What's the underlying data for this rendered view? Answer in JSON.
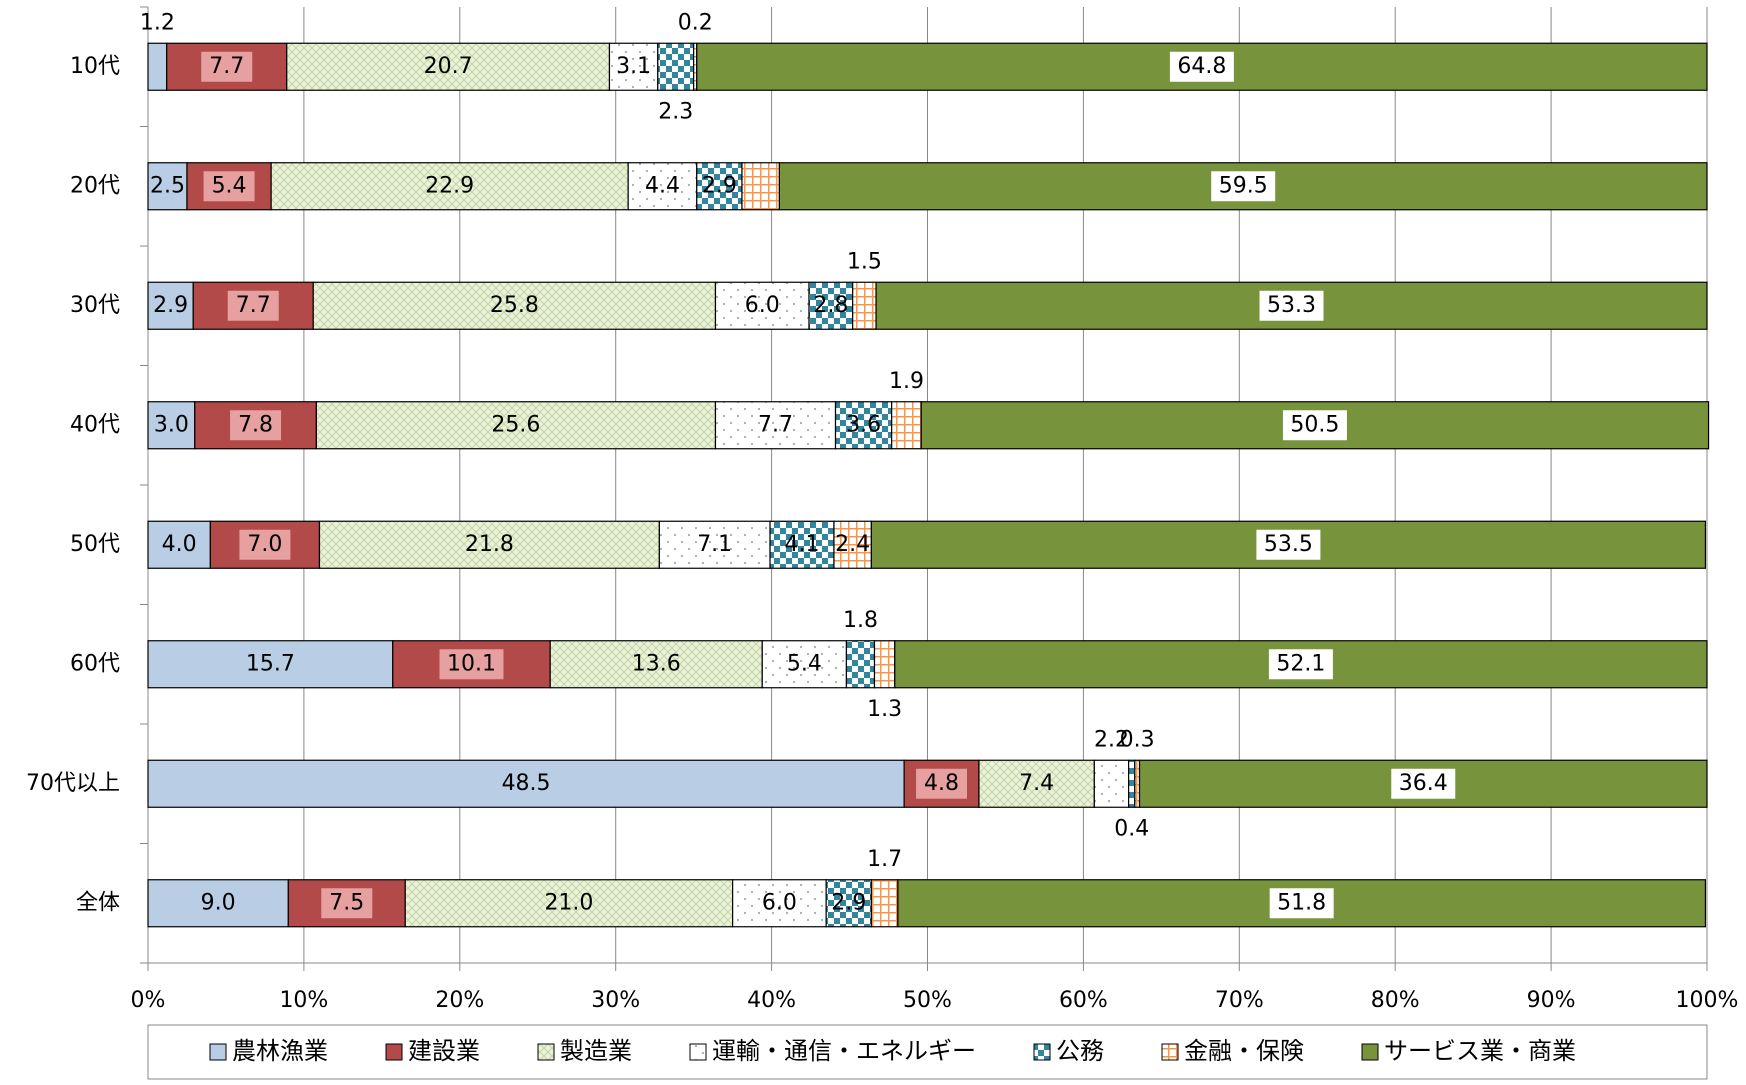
{
  "chart_data": {
    "type": "stacked-bar-horizontal",
    "categories": [
      "10代",
      "20代",
      "30代",
      "40代",
      "50代",
      "60代",
      "70代以上",
      "全体"
    ],
    "series": [
      {
        "name": "農林漁業",
        "color": "#b9cde5",
        "values": [
          1.2,
          2.5,
          2.9,
          3.0,
          4.0,
          15.7,
          48.5,
          9.0
        ],
        "value_labels": [
          "1.2",
          "2.5",
          "2.9",
          "3.0",
          "4.0",
          "15.7",
          "48.5",
          "9.0"
        ]
      },
      {
        "name": "建設業",
        "color": "#b14a48",
        "values": [
          7.7,
          5.4,
          7.7,
          7.8,
          7.0,
          10.1,
          4.8,
          7.5
        ],
        "value_labels": [
          "7.7",
          "5.4",
          "7.7",
          "7.8",
          "7.0",
          "10.1",
          "4.8",
          "7.5"
        ]
      },
      {
        "name": "製造業",
        "color": "#d7e4bd",
        "values": [
          20.7,
          22.9,
          25.8,
          25.6,
          21.8,
          13.6,
          7.4,
          21.0
        ],
        "value_labels": [
          "20.7",
          "22.9",
          "25.8",
          "25.6",
          "21.8",
          "13.6",
          "7.4",
          "21.0"
        ]
      },
      {
        "name": "運輸・通信・エネルギー",
        "color": "#bfbfbf",
        "values": [
          3.1,
          4.4,
          6.0,
          7.7,
          7.1,
          5.4,
          2.2,
          6.0
        ],
        "value_labels": [
          "3.1",
          "4.4",
          "6.0",
          "7.7",
          "7.1",
          "5.4",
          "2.2",
          "6.0"
        ]
      },
      {
        "name": "公務",
        "color": "#31859c",
        "values": [
          2.3,
          2.9,
          2.8,
          3.6,
          4.1,
          1.8,
          0.4,
          2.9
        ],
        "value_labels": [
          "2.3",
          "2.9",
          "2.8",
          "3.6",
          "4.1",
          "1.8",
          "0.4",
          "2.9"
        ]
      },
      {
        "name": "金融・保険",
        "color": "#f79646",
        "values": [
          0.2,
          2.4,
          1.5,
          1.9,
          2.4,
          1.3,
          0.3,
          1.7
        ],
        "value_labels": [
          "0.2",
          null,
          "1.5",
          "1.9",
          "2.4",
          "1.3",
          "0.3",
          "1.7"
        ]
      },
      {
        "name": "サービス業・商業",
        "color": "#77933c",
        "values": [
          64.8,
          59.5,
          53.3,
          50.5,
          53.5,
          52.1,
          36.4,
          51.8
        ],
        "value_labels": [
          "64.8",
          "59.5",
          "53.3",
          "50.5",
          "53.5",
          "52.1",
          "36.4",
          "51.8"
        ]
      }
    ],
    "xlim": [
      0,
      100
    ],
    "xticks": [
      {
        "value": 0,
        "label": "0%"
      },
      {
        "value": 10,
        "label": "10%"
      },
      {
        "value": 20,
        "label": "20%"
      },
      {
        "value": 30,
        "label": "30%"
      },
      {
        "value": 40,
        "label": "40%"
      },
      {
        "value": 50,
        "label": "50%"
      },
      {
        "value": 60,
        "label": "60%"
      },
      {
        "value": 70,
        "label": "70%"
      },
      {
        "value": 80,
        "label": "80%"
      },
      {
        "value": 90,
        "label": "90%"
      },
      {
        "value": 100,
        "label": "100%"
      }
    ],
    "grid": true,
    "legend": "bottom"
  }
}
